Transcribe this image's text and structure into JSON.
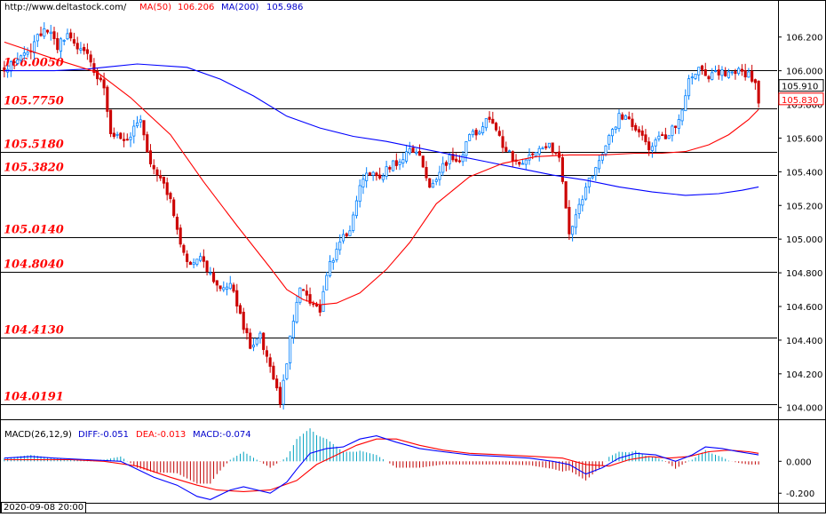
{
  "header": {
    "url": "http://www.deltastock.com/",
    "ma50_label": "MA(50)",
    "ma50_value": "106.206",
    "ma200_label": "MA(200)",
    "ma200_value": "105.986"
  },
  "macd_header": {
    "name": "MACD(26,12,9)",
    "diff": "DIFF:-0.051",
    "dea": "DEA:-0.013",
    "macd": "MACD:-0.074"
  },
  "time_label": "2020-09-08 20:00",
  "colors": {
    "ma50": "#ff0000",
    "ma200": "#0000ff",
    "bull": "#0080ff",
    "bear": "#cc0000",
    "level_label": "#ff0000",
    "price_tag_current": "#ff0000",
    "macd_hist_pos": "#00a0c0",
    "macd_hist_neg": "#c00000"
  },
  "chart_data": [
    {
      "type": "candlestick",
      "ylim": [
        103.93,
        106.42
      ],
      "y_ticks": [
        "106.200",
        "106.000",
        "105.800",
        "105.600",
        "105.400",
        "105.200",
        "105.000",
        "104.800",
        "104.600",
        "104.400",
        "104.200",
        "104.000"
      ],
      "levels": [
        "106.0050",
        "105.7750",
        "105.5180",
        "105.3820",
        "105.0140",
        "104.8040",
        "104.4130",
        "104.0191"
      ],
      "price_tags": [
        "105.910",
        "105.830"
      ],
      "price_path": [
        [
          0,
          105.99
        ],
        [
          3,
          106.06
        ],
        [
          7,
          106.1
        ],
        [
          10,
          106.2
        ],
        [
          13,
          106.25
        ],
        [
          16,
          106.15
        ],
        [
          19,
          106.2
        ],
        [
          22,
          106.14
        ],
        [
          25,
          106.1
        ],
        [
          27,
          106.0
        ],
        [
          30,
          105.9
        ],
        [
          32,
          105.65
        ],
        [
          35,
          105.58
        ],
        [
          38,
          105.63
        ],
        [
          41,
          105.72
        ],
        [
          44,
          105.45
        ],
        [
          47,
          105.38
        ],
        [
          50,
          105.22
        ],
        [
          53,
          104.95
        ],
        [
          56,
          104.86
        ],
        [
          59,
          104.92
        ],
        [
          62,
          104.78
        ],
        [
          65,
          104.7
        ],
        [
          68,
          104.76
        ],
        [
          71,
          104.55
        ],
        [
          74,
          104.36
        ],
        [
          77,
          104.42
        ],
        [
          80,
          104.22
        ],
        [
          83,
          104.03
        ],
        [
          86,
          104.4
        ],
        [
          89,
          104.72
        ],
        [
          92,
          104.62
        ],
        [
          95,
          104.58
        ],
        [
          98,
          104.85
        ],
        [
          101,
          104.99
        ],
        [
          104,
          105.05
        ],
        [
          107,
          105.32
        ],
        [
          110,
          105.4
        ],
        [
          113,
          105.36
        ],
        [
          116,
          105.44
        ],
        [
          119,
          105.46
        ],
        [
          122,
          105.55
        ],
        [
          125,
          105.5
        ],
        [
          128,
          105.3
        ],
        [
          131,
          105.4
        ],
        [
          134,
          105.48
        ],
        [
          137,
          105.45
        ],
        [
          140,
          105.62
        ],
        [
          143,
          105.65
        ],
        [
          146,
          105.72
        ],
        [
          149,
          105.6
        ],
        [
          152,
          105.5
        ],
        [
          155,
          105.45
        ],
        [
          158,
          105.48
        ],
        [
          161,
          105.52
        ],
        [
          164,
          105.55
        ],
        [
          167,
          105.5
        ],
        [
          170,
          105.03
        ],
        [
          173,
          105.2
        ],
        [
          176,
          105.35
        ],
        [
          179,
          105.48
        ],
        [
          182,
          105.6
        ],
        [
          185,
          105.73
        ],
        [
          188,
          105.7
        ],
        [
          191,
          105.62
        ],
        [
          194,
          105.55
        ],
        [
          197,
          105.6
        ],
        [
          200,
          105.62
        ],
        [
          203,
          105.7
        ],
        [
          206,
          105.95
        ],
        [
          209,
          106.02
        ],
        [
          212,
          105.97
        ],
        [
          215,
          105.98
        ],
        [
          218,
          106.0
        ],
        [
          221,
          106.0
        ],
        [
          224,
          105.98
        ],
        [
          226,
          105.91
        ],
        [
          227,
          105.83
        ]
      ],
      "ma50": [
        [
          0,
          106.17
        ],
        [
          15,
          106.07
        ],
        [
          28,
          105.99
        ],
        [
          38,
          105.84
        ],
        [
          50,
          105.62
        ],
        [
          60,
          105.34
        ],
        [
          70,
          105.08
        ],
        [
          80,
          104.83
        ],
        [
          85,
          104.7
        ],
        [
          90,
          104.64
        ],
        [
          95,
          104.61
        ],
        [
          100,
          104.62
        ],
        [
          107,
          104.68
        ],
        [
          115,
          104.82
        ],
        [
          122,
          104.98
        ],
        [
          130,
          105.21
        ],
        [
          140,
          105.37
        ],
        [
          150,
          105.45
        ],
        [
          160,
          105.49
        ],
        [
          170,
          105.5
        ],
        [
          180,
          105.5
        ],
        [
          190,
          105.51
        ],
        [
          198,
          105.51
        ],
        [
          205,
          105.52
        ],
        [
          212,
          105.56
        ],
        [
          218,
          105.62
        ],
        [
          224,
          105.71
        ],
        [
          227,
          105.77
        ]
      ],
      "ma200": [
        [
          0,
          106.0
        ],
        [
          15,
          106.0
        ],
        [
          25,
          106.01
        ],
        [
          40,
          106.04
        ],
        [
          55,
          106.02
        ],
        [
          65,
          105.95
        ],
        [
          75,
          105.85
        ],
        [
          85,
          105.73
        ],
        [
          95,
          105.66
        ],
        [
          105,
          105.61
        ],
        [
          115,
          105.58
        ],
        [
          125,
          105.54
        ],
        [
          135,
          105.5
        ],
        [
          145,
          105.46
        ],
        [
          155,
          105.42
        ],
        [
          165,
          105.38
        ],
        [
          175,
          105.35
        ],
        [
          185,
          105.31
        ],
        [
          195,
          105.28
        ],
        [
          205,
          105.26
        ],
        [
          215,
          105.27
        ],
        [
          222,
          105.29
        ],
        [
          227,
          105.31
        ]
      ]
    },
    {
      "type": "macd",
      "title": "MACD(26,12,9)",
      "ylim": [
        -0.26,
        0.23
      ],
      "y_ticks": [
        "0.000",
        "-0.200"
      ],
      "diff": [
        [
          0,
          0.02
        ],
        [
          8,
          0.03
        ],
        [
          15,
          0.02
        ],
        [
          25,
          0.01
        ],
        [
          35,
          0.0
        ],
        [
          40,
          -0.05
        ],
        [
          45,
          -0.1
        ],
        [
          52,
          -0.15
        ],
        [
          58,
          -0.22
        ],
        [
          62,
          -0.24
        ],
        [
          68,
          -0.18
        ],
        [
          72,
          -0.16
        ],
        [
          80,
          -0.2
        ],
        [
          85,
          -0.13
        ],
        [
          88,
          -0.05
        ],
        [
          92,
          0.05
        ],
        [
          97,
          0.08
        ],
        [
          102,
          0.09
        ],
        [
          107,
          0.14
        ],
        [
          112,
          0.16
        ],
        [
          118,
          0.12
        ],
        [
          125,
          0.08
        ],
        [
          132,
          0.06
        ],
        [
          140,
          0.04
        ],
        [
          150,
          0.03
        ],
        [
          158,
          0.02
        ],
        [
          165,
          0.0
        ],
        [
          170,
          -0.02
        ],
        [
          175,
          -0.08
        ],
        [
          180,
          -0.04
        ],
        [
          185,
          0.02
        ],
        [
          190,
          0.05
        ],
        [
          196,
          0.04
        ],
        [
          202,
          0.0
        ],
        [
          207,
          0.04
        ],
        [
          211,
          0.09
        ],
        [
          216,
          0.08
        ],
        [
          221,
          0.06
        ],
        [
          227,
          0.04
        ]
      ],
      "dea": [
        [
          0,
          0.01
        ],
        [
          10,
          0.01
        ],
        [
          20,
          0.01
        ],
        [
          30,
          0.0
        ],
        [
          40,
          -0.03
        ],
        [
          50,
          -0.1
        ],
        [
          58,
          -0.15
        ],
        [
          64,
          -0.18
        ],
        [
          72,
          -0.19
        ],
        [
          80,
          -0.18
        ],
        [
          88,
          -0.12
        ],
        [
          94,
          -0.02
        ],
        [
          100,
          0.04
        ],
        [
          106,
          0.1
        ],
        [
          112,
          0.14
        ],
        [
          118,
          0.14
        ],
        [
          125,
          0.1
        ],
        [
          132,
          0.07
        ],
        [
          140,
          0.05
        ],
        [
          150,
          0.04
        ],
        [
          160,
          0.03
        ],
        [
          168,
          0.02
        ],
        [
          175,
          -0.02
        ],
        [
          182,
          -0.03
        ],
        [
          188,
          0.01
        ],
        [
          194,
          0.03
        ],
        [
          200,
          0.02
        ],
        [
          206,
          0.03
        ],
        [
          212,
          0.06
        ],
        [
          218,
          0.07
        ],
        [
          224,
          0.06
        ],
        [
          227,
          0.05
        ]
      ]
    }
  ]
}
